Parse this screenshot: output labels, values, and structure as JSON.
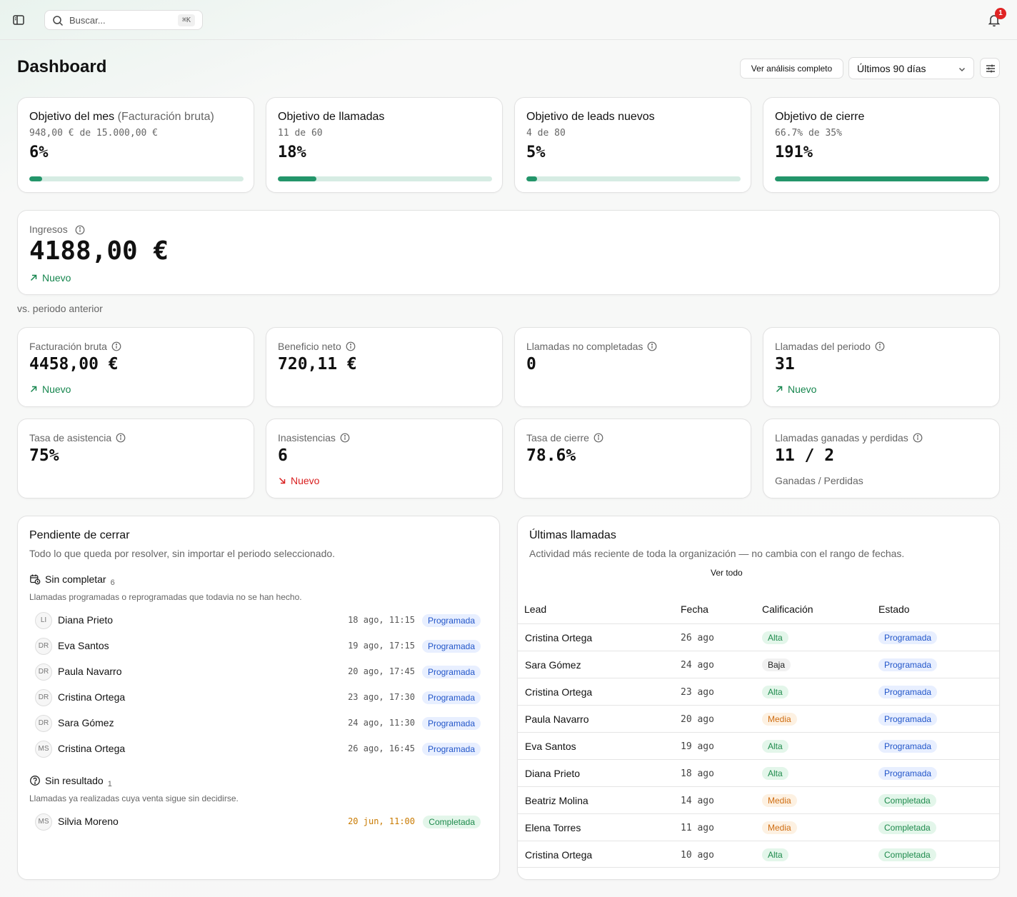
{
  "topbar": {
    "search_placeholder": "Buscar...",
    "search_shortcut": "⌘K",
    "notifications_count": "1"
  },
  "header": {
    "title": "Dashboard",
    "analysis_button": "Ver análisis completo",
    "range_value": "Últimos 90 días"
  },
  "goals": [
    {
      "title": "Objetivo del mes",
      "suffix": "(Facturación bruta)",
      "sub": "948,00 € de 15.000,00 €",
      "pct": "6%",
      "progress": 0.06
    },
    {
      "title": "Objetivo de llamadas",
      "suffix": "",
      "sub": "11 de 60",
      "pct": "18%",
      "progress": 0.18
    },
    {
      "title": "Objetivo de leads nuevos",
      "suffix": "",
      "sub": "4 de 80",
      "pct": "5%",
      "progress": 0.05
    },
    {
      "title": "Objetivo de cierre",
      "suffix": "",
      "sub": "66.7% de 35%",
      "pct": "191%",
      "progress": 1.0
    }
  ],
  "ingresos": {
    "label": "Ingresos",
    "value": "4188,00 €",
    "trend": "Nuevo",
    "comparison": "vs. periodo anterior"
  },
  "metrics": [
    {
      "label": "Facturación bruta",
      "value": "4458,00 €",
      "trend": "Nuevo",
      "trend_dir": "up",
      "note": ""
    },
    {
      "label": "Beneficio neto",
      "value": "720,11 €",
      "trend": "",
      "trend_dir": "",
      "note": ""
    },
    {
      "label": "Llamadas no completadas",
      "value": "0",
      "trend": "",
      "trend_dir": "",
      "note": ""
    },
    {
      "label": "Llamadas del periodo",
      "value": "31",
      "trend": "Nuevo",
      "trend_dir": "up",
      "note": ""
    },
    {
      "label": "Tasa de asistencia",
      "value": "75%",
      "trend": "",
      "trend_dir": "",
      "note": ""
    },
    {
      "label": "Inasistencias",
      "value": "6",
      "trend": "Nuevo",
      "trend_dir": "down",
      "note": ""
    },
    {
      "label": "Tasa de cierre",
      "value": "78.6%",
      "trend": "",
      "trend_dir": "",
      "note": ""
    },
    {
      "label": "Llamadas ganadas y perdidas",
      "value": "11 / 2",
      "trend": "",
      "trend_dir": "",
      "note": "Ganadas / Perdidas"
    }
  ],
  "pending": {
    "title": "Pendiente de cerrar",
    "description": "Todo lo que queda por resolver, sin importar el periodo seleccionado.",
    "incomplete": {
      "title": "Sin completar",
      "count": "6",
      "description": "Llamadas programadas o reprogramadas que todavia no se han hecho.",
      "rows": [
        {
          "initials": "LI",
          "name": "Diana Prieto",
          "date": "18 ago, 11:15",
          "status": "Programada"
        },
        {
          "initials": "DR",
          "name": "Eva Santos",
          "date": "19 ago, 17:15",
          "status": "Programada"
        },
        {
          "initials": "DR",
          "name": "Paula Navarro",
          "date": "20 ago, 17:45",
          "status": "Programada"
        },
        {
          "initials": "DR",
          "name": "Cristina Ortega",
          "date": "23 ago, 17:30",
          "status": "Programada"
        },
        {
          "initials": "DR",
          "name": "Sara Gómez",
          "date": "24 ago, 11:30",
          "status": "Programada"
        },
        {
          "initials": "MS",
          "name": "Cristina Ortega",
          "date": "26 ago, 16:45",
          "status": "Programada"
        }
      ]
    },
    "no_result": {
      "title": "Sin resultado",
      "count": "1",
      "description": "Llamadas ya realizadas cuya venta sigue sin decidirse.",
      "rows": [
        {
          "initials": "MS",
          "name": "Silvia Moreno",
          "date": "20 jun, 11:00",
          "status": "Completada"
        }
      ]
    }
  },
  "recent": {
    "title": "Últimas llamadas",
    "description": "Actividad más reciente de toda la organización — no cambia con el rango de fechas.",
    "view_all": "Ver todo",
    "columns": [
      "Lead",
      "Fecha",
      "Calificación",
      "Estado"
    ],
    "rows": [
      {
        "lead": "Cristina Ortega",
        "date": "26 ago",
        "rating": "Alta",
        "status": "Programada"
      },
      {
        "lead": "Sara Gómez",
        "date": "24 ago",
        "rating": "Baja",
        "status": "Programada"
      },
      {
        "lead": "Cristina Ortega",
        "date": "23 ago",
        "rating": "Alta",
        "status": "Programada"
      },
      {
        "lead": "Paula Navarro",
        "date": "20 ago",
        "rating": "Media",
        "status": "Programada"
      },
      {
        "lead": "Eva Santos",
        "date": "19 ago",
        "rating": "Alta",
        "status": "Programada"
      },
      {
        "lead": "Diana Prieto",
        "date": "18 ago",
        "rating": "Alta",
        "status": "Programada"
      },
      {
        "lead": "Beatriz Molina",
        "date": "14 ago",
        "rating": "Media",
        "status": "Completada"
      },
      {
        "lead": "Elena Torres",
        "date": "11 ago",
        "rating": "Media",
        "status": "Completada"
      },
      {
        "lead": "Cristina Ortega",
        "date": "10 ago",
        "rating": "Alta",
        "status": "Completada"
      }
    ]
  },
  "colors": {
    "accent": "#23956a",
    "track": "#d6ece3",
    "trend_up": "#16864e",
    "trend_down": "#d92020"
  }
}
